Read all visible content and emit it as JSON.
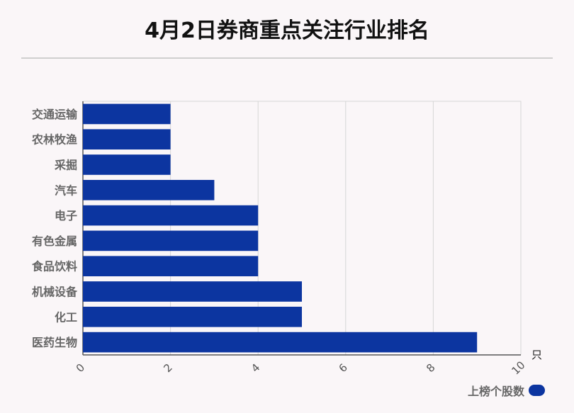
{
  "title": "4月2日券商重点关注行业排名",
  "chart_data": {
    "type": "bar",
    "orientation": "horizontal",
    "categories": [
      "交通运输",
      "农林牧渔",
      "采掘",
      "汽车",
      "电子",
      "有色金属",
      "食品饮料",
      "机械设备",
      "化工",
      "医药生物"
    ],
    "series": [
      {
        "name": "上榜个股数",
        "values": [
          2,
          2,
          2,
          3,
          4,
          4,
          4,
          5,
          5,
          9
        ]
      }
    ],
    "xlim": [
      0,
      10
    ],
    "xticks": [
      0,
      2,
      4,
      6,
      8,
      10
    ],
    "x_unit": "只",
    "grid": true,
    "legend_position": "bottom-right",
    "bar_color": "#0c35a0"
  }
}
